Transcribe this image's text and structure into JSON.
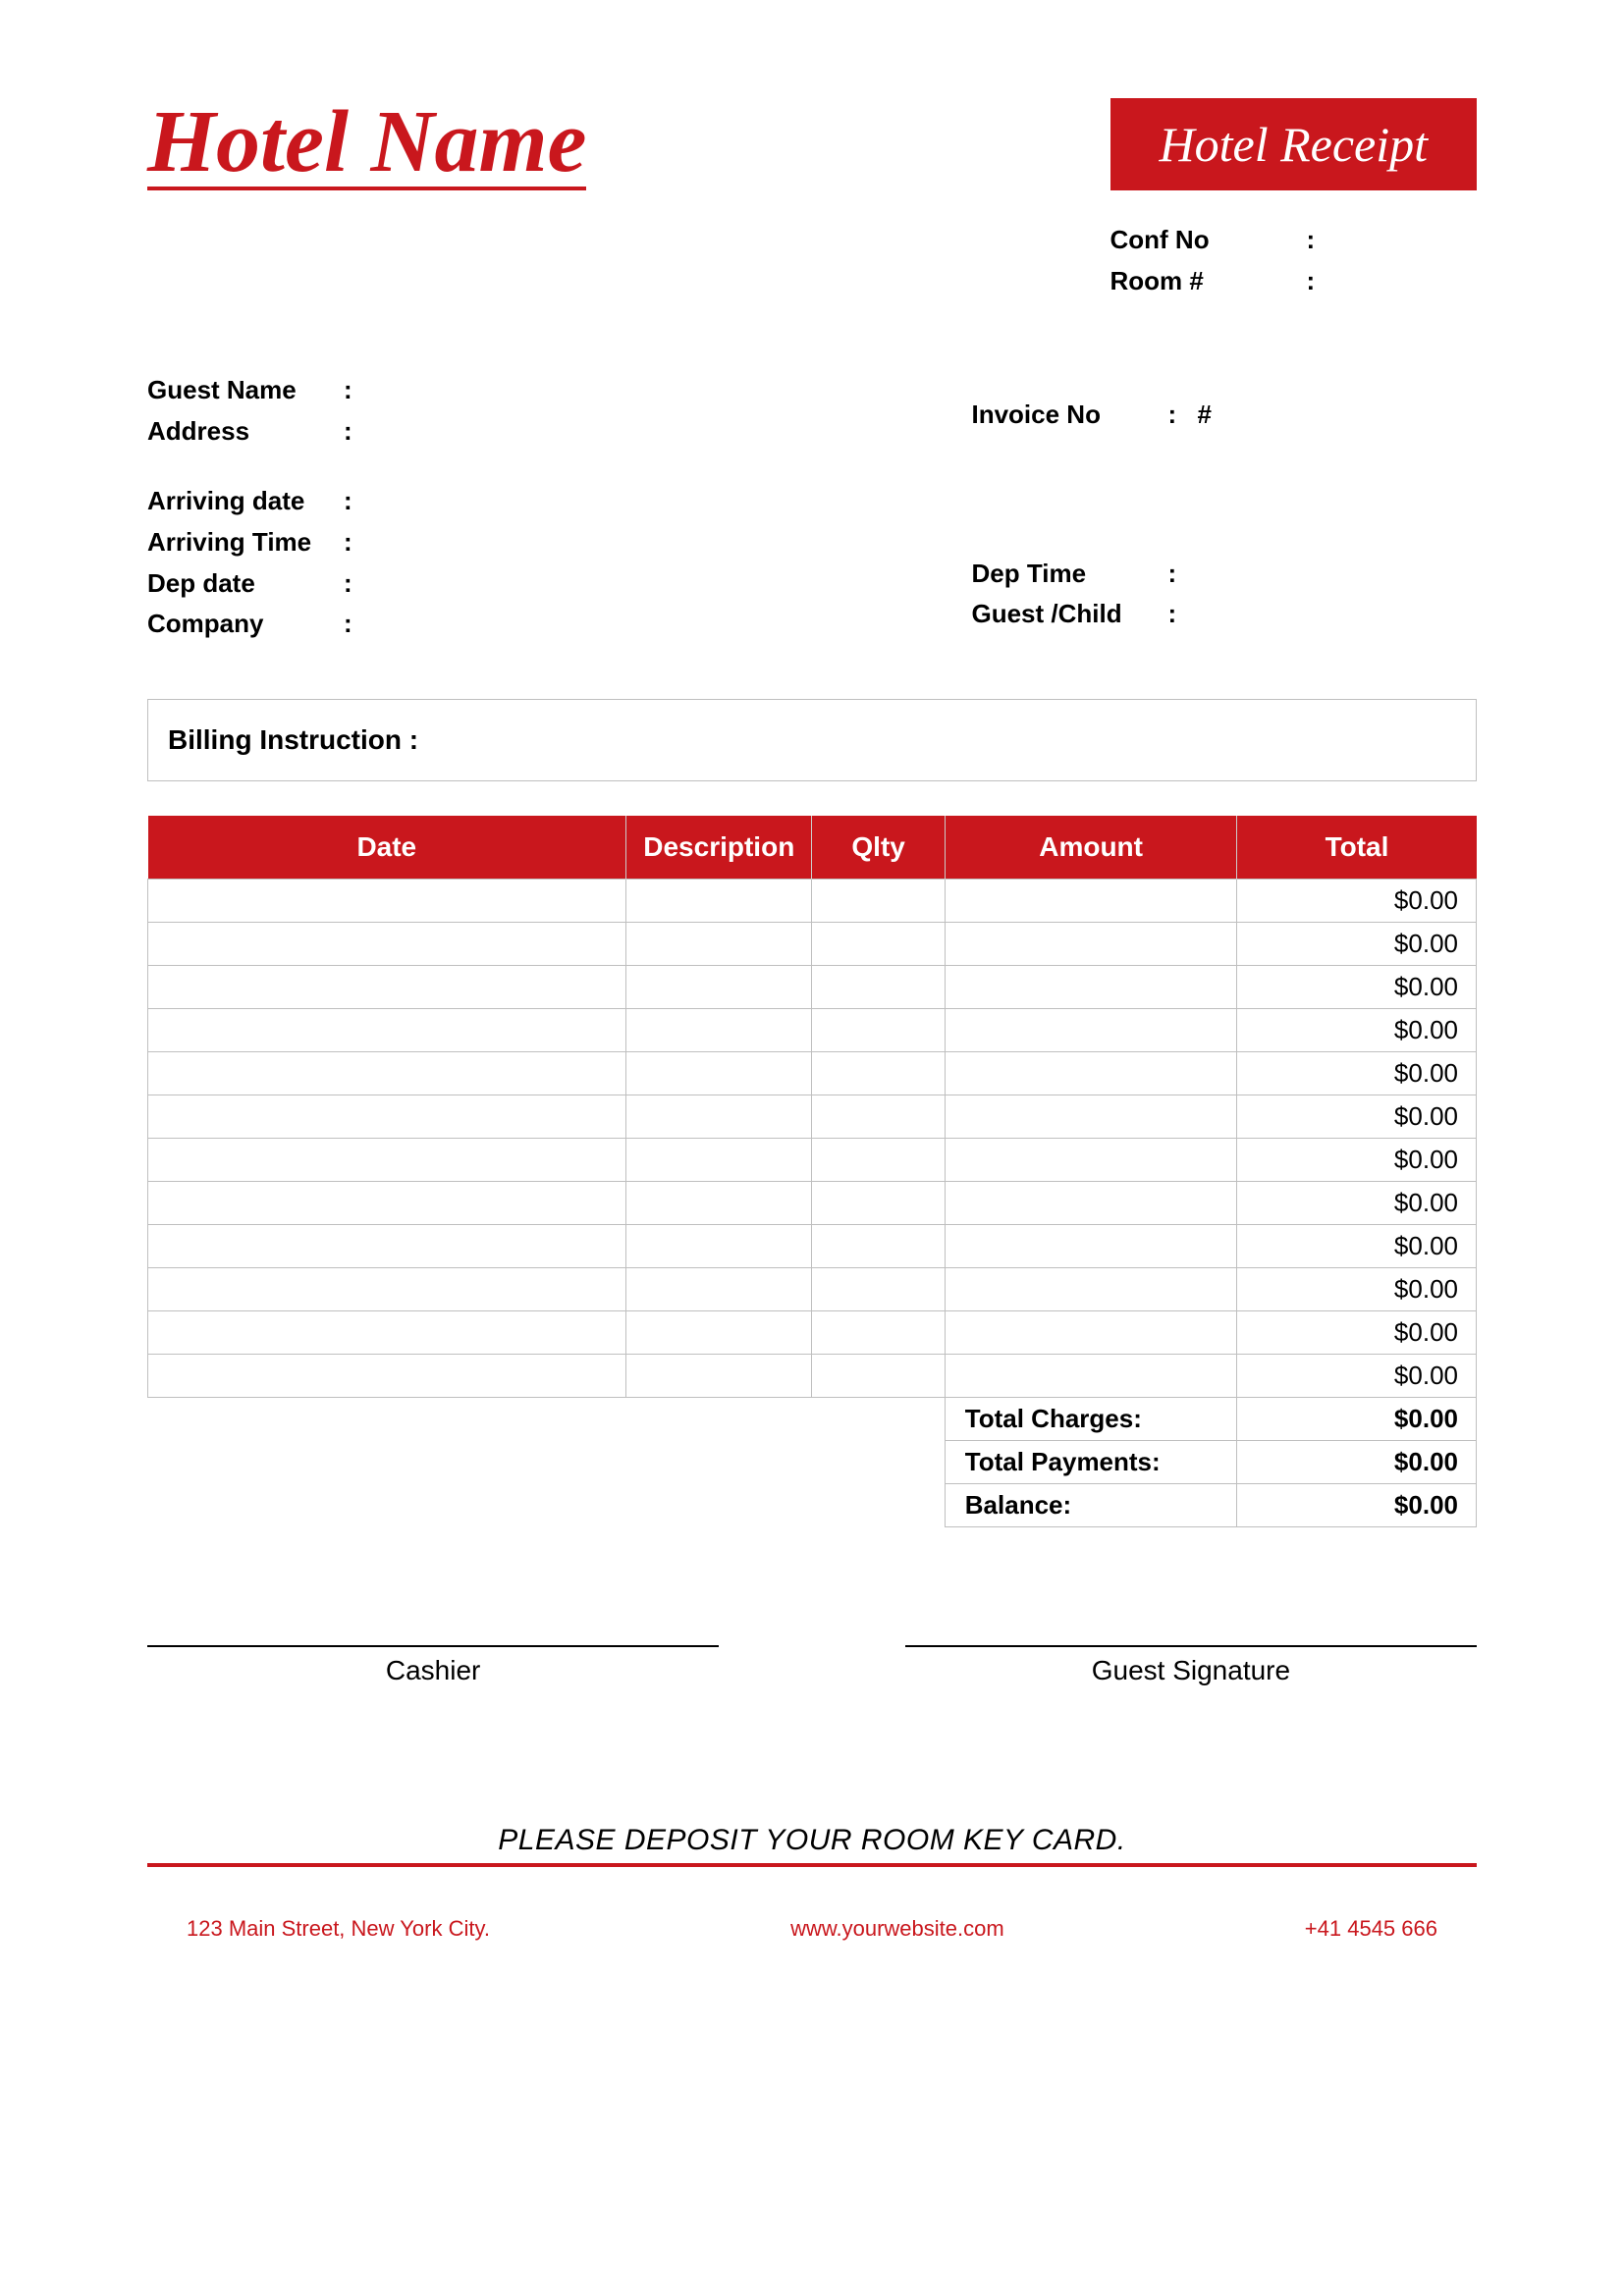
{
  "colors": {
    "accent": "#c9171d",
    "border": "#bfbfbf",
    "background": "#ffffff",
    "text": "#000000",
    "header_text": "#ffffff"
  },
  "header": {
    "hotel_name": "Hotel Name",
    "receipt_title": "Hotel Receipt"
  },
  "meta_right_top": [
    {
      "label": "Conf No",
      "colon": ":",
      "value": ""
    },
    {
      "label": "Room #",
      "colon": ":",
      "value": ""
    }
  ],
  "meta_right_invoice": {
    "label": "Invoice No",
    "colon": ":",
    "value": "#"
  },
  "meta_left_guest": [
    {
      "label": "Guest Name",
      "colon": ":",
      "value": ""
    },
    {
      "label": "Address",
      "colon": ":",
      "value": ""
    }
  ],
  "meta_left_stay": [
    {
      "label": "Arriving date",
      "colon": ":",
      "value": ""
    },
    {
      "label": "Arriving Time",
      "colon": ":",
      "value": ""
    },
    {
      "label": "Dep date",
      "colon": ":",
      "value": ""
    },
    {
      "label": "Company",
      "colon": ":",
      "value": ""
    }
  ],
  "meta_right_bottom": [
    {
      "label": "Dep Time",
      "colon": ":",
      "value": ""
    },
    {
      "label": "Guest /Child",
      "colon": ":",
      "value": ""
    }
  ],
  "billing_instruction_label": "Billing Instruction :",
  "table": {
    "columns": [
      "Date",
      "Description",
      "Qlty",
      "Amount",
      "Total"
    ],
    "column_widths_pct": [
      36,
      14,
      10,
      22,
      18
    ],
    "rows": [
      {
        "date": "",
        "description": "",
        "qty": "",
        "amount": "",
        "total": "$0.00"
      },
      {
        "date": "",
        "description": "",
        "qty": "",
        "amount": "",
        "total": "$0.00"
      },
      {
        "date": "",
        "description": "",
        "qty": "",
        "amount": "",
        "total": "$0.00"
      },
      {
        "date": "",
        "description": "",
        "qty": "",
        "amount": "",
        "total": "$0.00"
      },
      {
        "date": "",
        "description": "",
        "qty": "",
        "amount": "",
        "total": "$0.00"
      },
      {
        "date": "",
        "description": "",
        "qty": "",
        "amount": "",
        "total": "$0.00"
      },
      {
        "date": "",
        "description": "",
        "qty": "",
        "amount": "",
        "total": "$0.00"
      },
      {
        "date": "",
        "description": "",
        "qty": "",
        "amount": "",
        "total": "$0.00"
      },
      {
        "date": "",
        "description": "",
        "qty": "",
        "amount": "",
        "total": "$0.00"
      },
      {
        "date": "",
        "description": "",
        "qty": "",
        "amount": "",
        "total": "$0.00"
      },
      {
        "date": "",
        "description": "",
        "qty": "",
        "amount": "",
        "total": "$0.00"
      },
      {
        "date": "",
        "description": "",
        "qty": "",
        "amount": "",
        "total": "$0.00"
      }
    ],
    "summary": [
      {
        "label": "Total Charges:",
        "value": "$0.00"
      },
      {
        "label": "Total Payments:",
        "value": "$0.00"
      },
      {
        "label": "Balance:",
        "value": "$0.00"
      }
    ]
  },
  "signatures": {
    "cashier": "Cashier",
    "guest": "Guest Signature"
  },
  "deposit_note": "PLEASE DEPOSIT YOUR ROOM KEY CARD.",
  "footer": {
    "address": "123 Main Street, New York City.",
    "website": "www.yourwebsite.com",
    "phone": "+41 4545 666"
  }
}
